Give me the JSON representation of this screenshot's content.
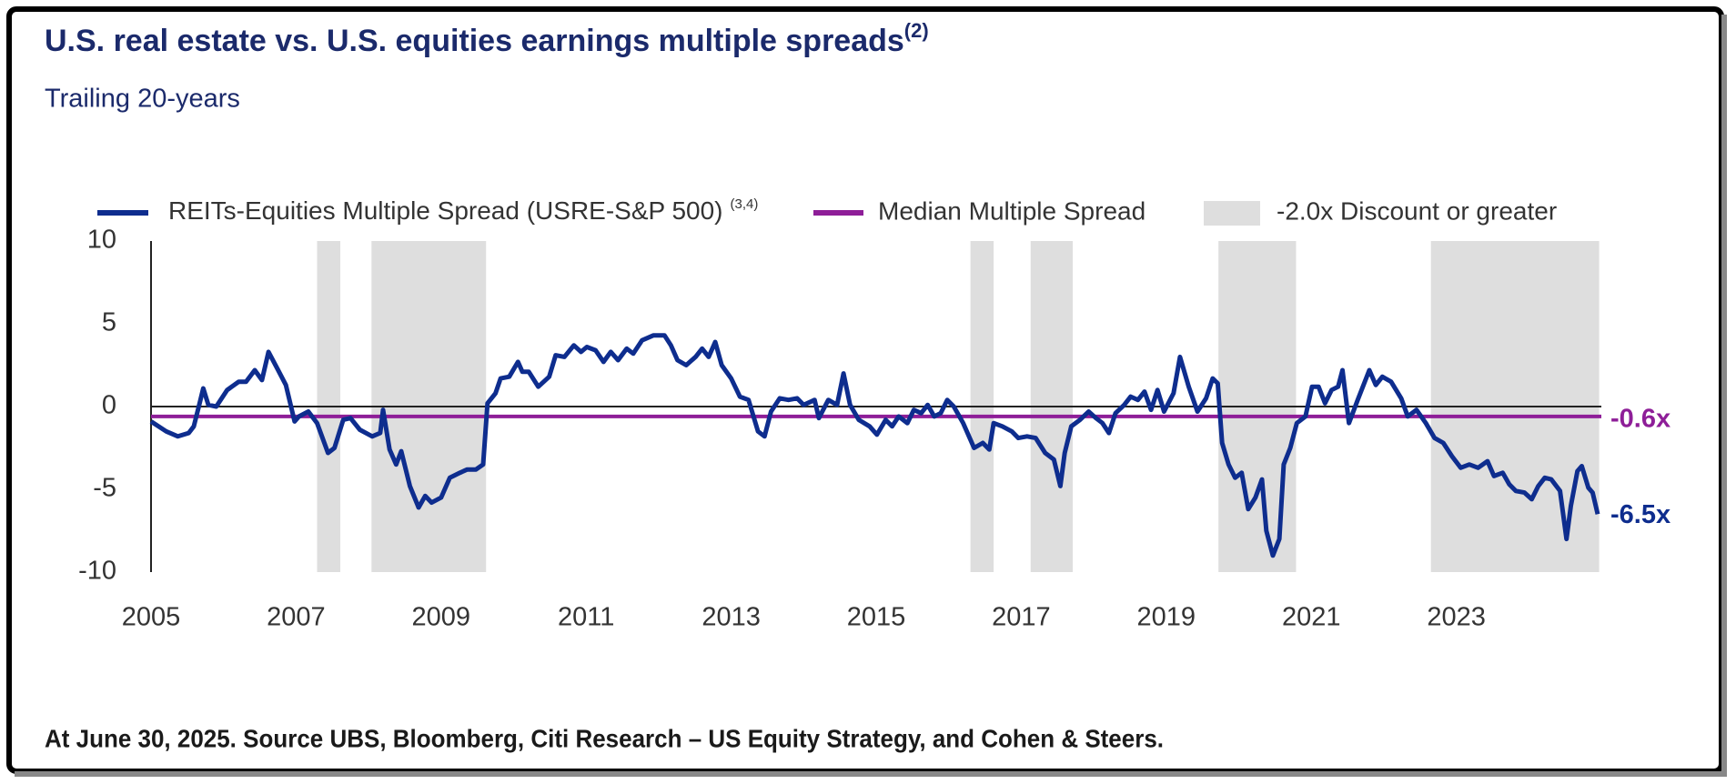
{
  "chart_data": {
    "type": "line",
    "title": "U.S. real estate vs. U.S. equities earnings multiple spreads",
    "title_note": "(2)",
    "subtitle": "Trailing 20-years",
    "footnote": "At June 30, 2025. Source UBS, Bloomberg, Citi Research – US Equity Strategy, and Cohen & Steers.",
    "legend": "top",
    "grid": false,
    "xlim": [
      2005,
      2025
    ],
    "xticks": [
      2005,
      2007,
      2009,
      2011,
      2013,
      2015,
      2017,
      2019,
      2021,
      2023
    ],
    "ylim": [
      -10,
      10
    ],
    "yticks": [
      10,
      5,
      0,
      -5,
      -10
    ],
    "x": [
      2005.0,
      2005.21,
      2005.37,
      2005.52,
      2005.59,
      2005.67,
      2005.72,
      2005.79,
      2005.9,
      2006.05,
      2006.21,
      2006.31,
      2006.43,
      2006.53,
      2006.62,
      2006.74,
      2006.86,
      2006.98,
      2007.04,
      2007.17,
      2007.29,
      2007.44,
      2007.53,
      2007.65,
      2007.75,
      2007.88,
      2008.05,
      2008.16,
      2008.2,
      2008.29,
      2008.38,
      2008.45,
      2008.57,
      2008.69,
      2008.78,
      2008.87,
      2009.0,
      2009.12,
      2009.26,
      2009.36,
      2009.48,
      2009.58,
      2009.64,
      2009.75,
      2009.82,
      2009.94,
      2010.06,
      2010.12,
      2010.21,
      2010.34,
      2010.49,
      2010.58,
      2010.7,
      2010.83,
      2010.93,
      2011.01,
      2011.13,
      2011.24,
      2011.34,
      2011.44,
      2011.56,
      2011.65,
      2011.77,
      2011.93,
      2012.08,
      2012.17,
      2012.26,
      2012.38,
      2012.51,
      2012.6,
      2012.69,
      2012.78,
      2012.87,
      2013.0,
      2013.12,
      2013.24,
      2013.37,
      2013.46,
      2013.55,
      2013.67,
      2013.79,
      2013.91,
      2014.0,
      2014.15,
      2014.21,
      2014.34,
      2014.46,
      2014.55,
      2014.64,
      2014.76,
      2014.91,
      2015.01,
      2015.13,
      2015.22,
      2015.31,
      2015.43,
      2015.52,
      2015.62,
      2015.71,
      2015.8,
      2015.89,
      2015.98,
      2016.07,
      2016.2,
      2016.35,
      2016.47,
      2016.56,
      2016.62,
      2016.74,
      2016.87,
      2016.96,
      2017.08,
      2017.2,
      2017.33,
      2017.45,
      2017.54,
      2017.6,
      2017.69,
      2017.81,
      2017.93,
      2018.03,
      2018.12,
      2018.21,
      2018.3,
      2018.42,
      2018.51,
      2018.61,
      2018.7,
      2018.79,
      2018.88,
      2018.97,
      2019.1,
      2019.19,
      2019.31,
      2019.43,
      2019.55,
      2019.64,
      2019.71,
      2019.77,
      2019.86,
      2019.95,
      2020.04,
      2020.13,
      2020.23,
      2020.32,
      2020.38,
      2020.47,
      2020.56,
      2020.62,
      2020.71,
      2020.8,
      2020.92,
      2021.01,
      2021.1,
      2021.19,
      2021.28,
      2021.37,
      2021.43,
      2021.52,
      2021.64,
      2021.8,
      2021.89,
      2021.98,
      2022.1,
      2022.24,
      2022.33,
      2022.45,
      2022.58,
      2022.7,
      2022.82,
      2022.94,
      2023.06,
      2023.18,
      2023.3,
      2023.43,
      2023.52,
      2023.64,
      2023.73,
      2023.82,
      2023.94,
      2024.04,
      2024.13,
      2024.22,
      2024.31,
      2024.43,
      2024.52,
      2024.58,
      2024.67,
      2024.73,
      2024.82,
      2024.88,
      2024.95
    ],
    "series": [
      {
        "name": "REITs-Equities Multiple Spread (USRE-S&P 500)",
        "name_note": "(3,4)",
        "color": "#0e2d8e",
        "last_label": "-6.5x",
        "values": [
          -0.9,
          -1.5,
          -1.8,
          -1.6,
          -1.2,
          0.2,
          1.1,
          0.1,
          0.0,
          1.0,
          1.5,
          1.5,
          2.2,
          1.6,
          3.3,
          2.3,
          1.3,
          -0.9,
          -0.6,
          -0.3,
          -1.0,
          -2.8,
          -2.5,
          -0.8,
          -0.7,
          -1.4,
          -1.8,
          -1.6,
          -0.2,
          -2.6,
          -3.5,
          -2.7,
          -4.8,
          -6.1,
          -5.4,
          -5.8,
          -5.5,
          -4.3,
          -4.0,
          -3.8,
          -3.8,
          -3.5,
          0.2,
          0.8,
          1.7,
          1.8,
          2.7,
          2.1,
          2.1,
          1.2,
          1.8,
          3.1,
          3.0,
          3.7,
          3.3,
          3.6,
          3.4,
          2.7,
          3.3,
          2.8,
          3.5,
          3.2,
          4.0,
          4.3,
          4.3,
          3.7,
          2.8,
          2.5,
          3.0,
          3.5,
          3.0,
          3.9,
          2.5,
          1.7,
          0.6,
          0.4,
          -1.5,
          -1.8,
          -0.3,
          0.5,
          0.4,
          0.5,
          0.1,
          0.4,
          -0.7,
          0.4,
          0.1,
          2.0,
          0.1,
          -0.8,
          -1.2,
          -1.7,
          -0.8,
          -1.2,
          -0.6,
          -1.0,
          -0.2,
          -0.4,
          0.1,
          -0.6,
          -0.4,
          0.4,
          0.0,
          -1.0,
          -2.5,
          -2.2,
          -2.6,
          -1.0,
          -1.2,
          -1.5,
          -1.9,
          -1.8,
          -1.9,
          -2.8,
          -3.2,
          -4.8,
          -2.8,
          -1.2,
          -0.8,
          -0.3,
          -0.7,
          -1.0,
          -1.6,
          -0.4,
          0.1,
          0.6,
          0.4,
          0.9,
          -0.2,
          1.0,
          -0.3,
          0.8,
          3.0,
          1.2,
          -0.3,
          0.5,
          1.7,
          1.4,
          -2.2,
          -3.5,
          -4.3,
          -4.0,
          -6.2,
          -5.5,
          -4.4,
          -7.5,
          -9.0,
          -8.0,
          -3.5,
          -2.5,
          -1.0,
          -0.6,
          1.2,
          1.2,
          0.2,
          1.0,
          1.2,
          2.2,
          -1.0,
          0.4,
          2.2,
          1.3,
          1.8,
          1.5,
          0.5,
          -0.6,
          -0.2,
          -1.0,
          -1.9,
          -2.2,
          -3.0,
          -3.7,
          -3.5,
          -3.7,
          -3.3,
          -4.2,
          -4.0,
          -4.7,
          -5.1,
          -5.2,
          -5.6,
          -4.8,
          -4.3,
          -4.4,
          -5.1,
          -8.0,
          -6.0,
          -3.9,
          -3.6,
          -4.9,
          -5.2,
          -6.5
        ]
      }
    ],
    "reference_line": {
      "name": "Median Multiple Spread",
      "value": -0.6,
      "label": "-0.6x",
      "color": "#8e1e98"
    },
    "shaded_regions": {
      "name": "-2.0x Discount or greater",
      "color": "#dedede",
      "ranges": [
        [
          2007.29,
          2007.61
        ],
        [
          2008.04,
          2009.62
        ],
        [
          2016.3,
          2016.62
        ],
        [
          2017.13,
          2017.71
        ],
        [
          2019.72,
          2020.79
        ],
        [
          2022.65,
          2024.97
        ]
      ]
    }
  }
}
